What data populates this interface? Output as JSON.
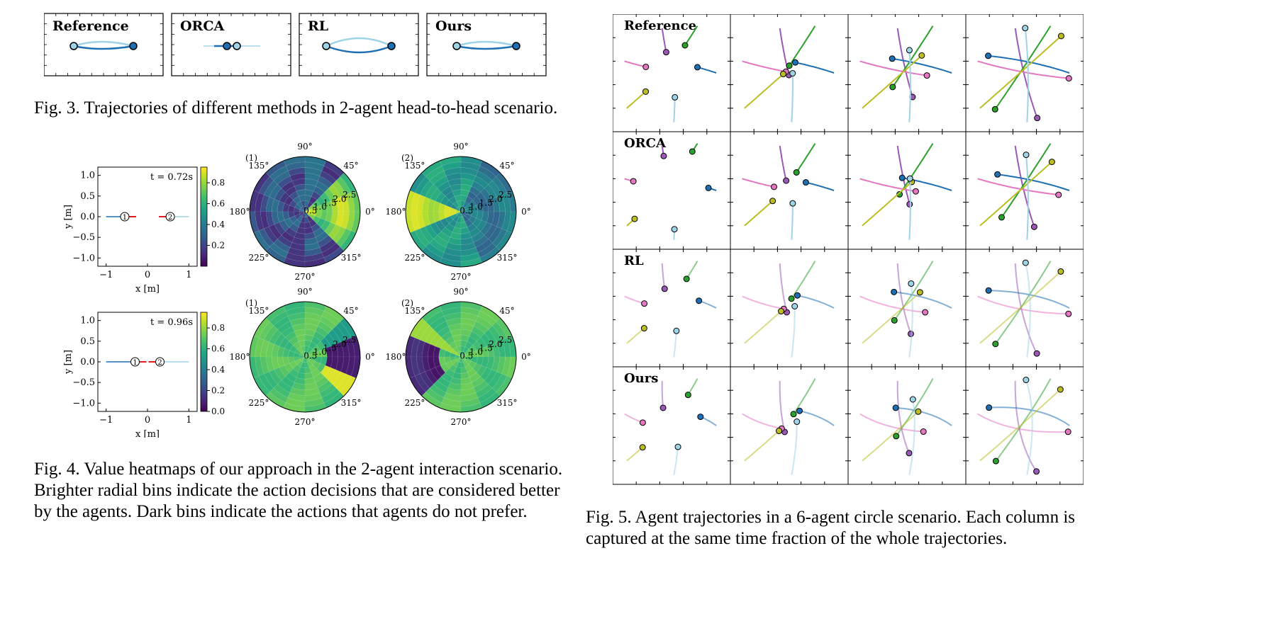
{
  "fig3": {
    "panels": [
      "Reference",
      "ORCA",
      "RL",
      "Ours"
    ],
    "caption": "Fig. 3.   Trajectories of different methods in 2-agent head-to-head scenario."
  },
  "fig4": {
    "caption_lines": [
      "Fig. 4.   Value heatmaps of our approach in the 2-agent interaction scenario.",
      "Brighter radial bins indicate the action decisions that are considered better",
      "by the agents. Dark bins indicate the actions that agents do not prefer."
    ],
    "rows": [
      {
        "time_label": "t = 0.72s",
        "agent1_x": -0.55,
        "agent2_x": 0.55
      },
      {
        "time_label": "t = 0.96s",
        "agent1_x": -0.3,
        "agent2_x": 0.3
      }
    ],
    "xlabel": "x [m]",
    "ylabel": "y [m]",
    "x_ticks": [
      "−1",
      "0",
      "1"
    ],
    "y_ticks": [
      "1.0",
      "0.5",
      "0.0",
      "−0.5",
      "−1.0"
    ],
    "colorbar_ticks": [
      "0.8",
      "0.6",
      "0.4",
      "0.2"
    ],
    "colorbar_ticks_row2": [
      "0.8",
      "0.6",
      "0.4",
      "0.2",
      "0.0"
    ],
    "polar_angle_labels": [
      "90°",
      "45°",
      "0°",
      "315°",
      "270°",
      "225°",
      "180°",
      "135°"
    ],
    "polar_radial_labels": [
      "0.5",
      "1.0",
      "1.5",
      "2.0",
      "2.5"
    ],
    "polar_panel_tags": [
      "(1)",
      "(2)"
    ],
    "agent_markers": [
      "1",
      "2"
    ]
  },
  "fig5": {
    "row_labels": [
      "Reference",
      "ORCA",
      "RL",
      "Ours"
    ],
    "caption_lines": [
      "Fig. 5.   Agent trajectories in a 6-agent circle scenario. Each column is",
      "captured at the same time fraction of the whole trajectories."
    ]
  },
  "colors": {
    "blue": "#1f6fb4",
    "lightblue": "#9fd3e6",
    "purple": "#9b59b6",
    "green": "#2ca02c",
    "pink": "#e377c2",
    "olive": "#bcbd22",
    "red": "#e31a1c"
  }
}
